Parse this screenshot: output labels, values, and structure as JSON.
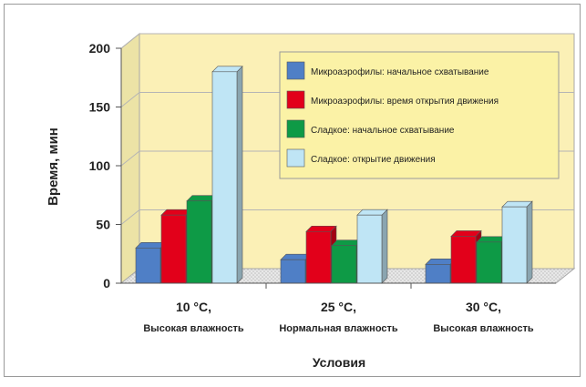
{
  "chart_data": {
    "type": "bar",
    "categories": [
      {
        "line1": "10 °C,",
        "line2": "Высокая влажность"
      },
      {
        "line1": "25 °C,",
        "line2": "Нормальная влажность"
      },
      {
        "line1": "30 °C,",
        "line2": "Высокая влажность"
      }
    ],
    "series": [
      {
        "name": "Микроаэрофилы: начальное схватывание",
        "color": "#4f7fc6",
        "values": [
          30,
          20,
          16
        ]
      },
      {
        "name": "Микроаэрофилы: время открытия движения",
        "color": "#e2001a",
        "values": [
          58,
          44,
          40
        ]
      },
      {
        "name": "Сладкое: начальное схватывание",
        "color": "#0e9a46",
        "values": [
          70,
          32,
          35
        ]
      },
      {
        "name": "Сладкое: открытие движения",
        "color": "#bfe5f5",
        "values": [
          180,
          58,
          65
        ]
      }
    ],
    "ylabel": "Время, мин",
    "xlabel": "Условия",
    "ylim": [
      0,
      200
    ],
    "yticks": [
      0,
      50,
      100,
      150,
      200
    ],
    "grid": true,
    "legend_placement": "top-right",
    "wall_color": "#fbf0b6",
    "legend_bg": "#fbf2a6"
  }
}
